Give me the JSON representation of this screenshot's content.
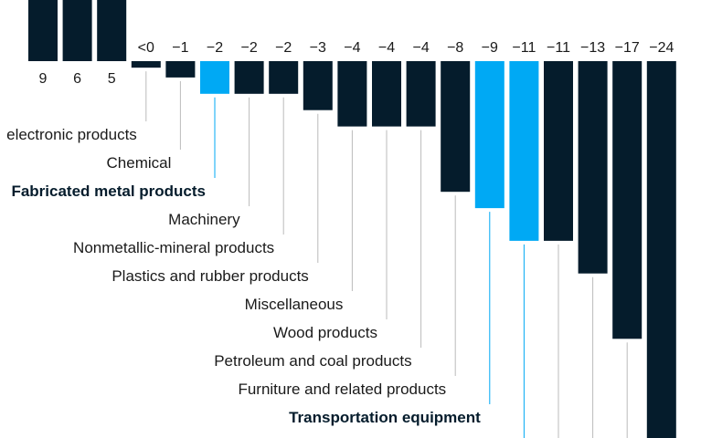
{
  "chart_data": {
    "type": "bar",
    "orientation": "vertical",
    "baseline": 0,
    "colors": {
      "default": "#051c2c",
      "highlight": "#00a9f4",
      "leader": "#bbbbbb"
    },
    "bars": [
      {
        "label": "",
        "value": 9,
        "display": "9",
        "highlight": false
      },
      {
        "label": "",
        "value": 6,
        "display": "6",
        "highlight": false
      },
      {
        "label": "",
        "value": 5,
        "display": "5",
        "highlight": false
      },
      {
        "label": "electronic products",
        "value": -0.4,
        "display": "<0",
        "highlight": false
      },
      {
        "label": "Chemical",
        "value": -1,
        "display": "−1",
        "highlight": false
      },
      {
        "label": "Fabricated metal products",
        "value": -2,
        "display": "−2",
        "highlight": true
      },
      {
        "label": "Machinery",
        "value": -2,
        "display": "−2",
        "highlight": false
      },
      {
        "label": "Nonmetallic-mineral products",
        "value": -2,
        "display": "−2",
        "highlight": false
      },
      {
        "label": "Plastics and rubber products",
        "value": -3,
        "display": "−3",
        "highlight": false
      },
      {
        "label": "Miscellaneous",
        "value": -4,
        "display": "−4",
        "highlight": false
      },
      {
        "label": "Wood products",
        "value": -4,
        "display": "−4",
        "highlight": false
      },
      {
        "label": "Petroleum and coal products",
        "value": -4,
        "display": "−4",
        "highlight": false
      },
      {
        "label": "Furniture and related products",
        "value": -8,
        "display": "−8",
        "highlight": false
      },
      {
        "label": "Transportation equipment",
        "value": -9,
        "display": "−9",
        "highlight": true
      },
      {
        "label": "",
        "value": -11,
        "display": "−11",
        "highlight": true
      },
      {
        "label": "",
        "value": -11,
        "display": "−11",
        "highlight": false
      },
      {
        "label": "",
        "value": -13,
        "display": "−13",
        "highlight": false
      },
      {
        "label": "",
        "value": -17,
        "display": "−17",
        "highlight": false
      },
      {
        "label": "",
        "value": -24,
        "display": "−24",
        "highlight": false
      }
    ]
  }
}
